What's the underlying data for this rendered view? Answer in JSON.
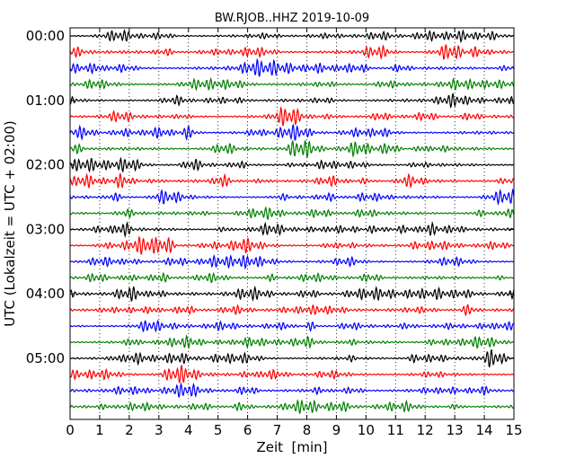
{
  "chart_data": {
    "type": "line",
    "title": "BW.RJOB..HHZ 2019-10-09",
    "xlabel": "Zeit  [min]",
    "ylabel": "UTC (Lokalzeit = UTC + 02:00)",
    "xlim": [
      0,
      15
    ],
    "x_ticks": [
      0,
      1,
      2,
      3,
      4,
      5,
      6,
      7,
      8,
      9,
      10,
      11,
      12,
      13,
      14,
      15
    ],
    "y_tick_labels": [
      "00:00",
      "01:00",
      "02:00",
      "03:00",
      "04:00",
      "05:00"
    ],
    "grid": "vertical dotted lines at each minute",
    "trace_colors": [
      "#000000",
      "#ff0000",
      "#0000ff",
      "#007f00"
    ],
    "trace_count": 24,
    "trace_interval_minutes": 15
  }
}
